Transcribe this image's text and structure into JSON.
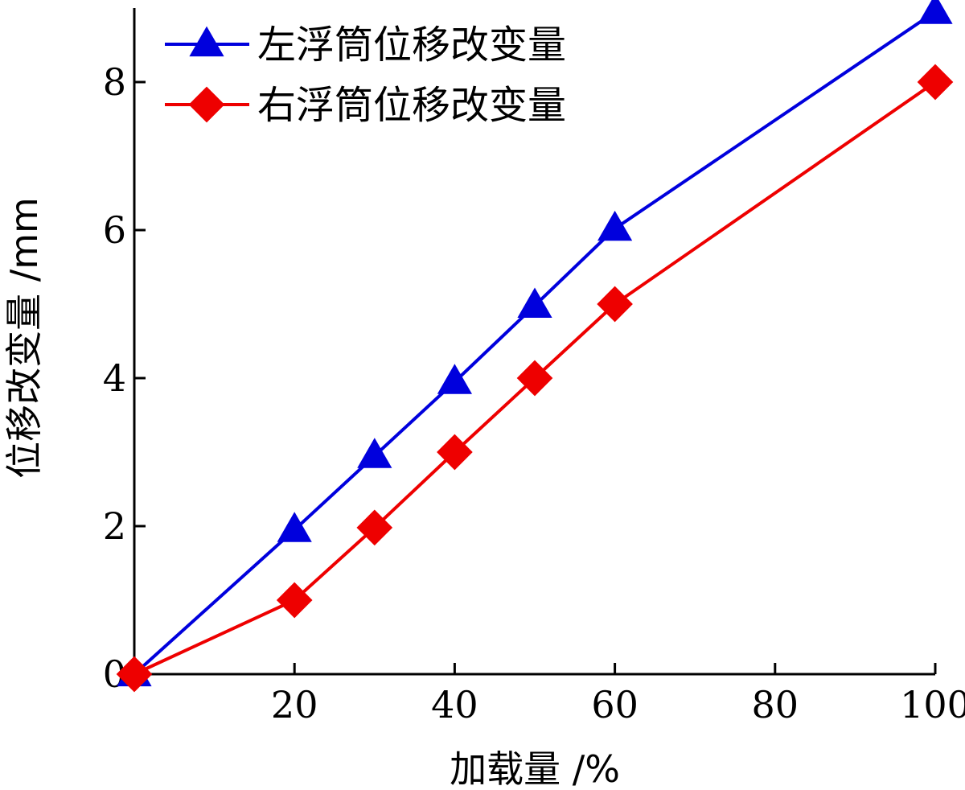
{
  "chart_data": {
    "type": "line",
    "title": "",
    "xlabel": "加载量 /%",
    "ylabel": "位移改变量 /mm",
    "xlim": [
      0,
      100
    ],
    "ylim": [
      0,
      9
    ],
    "x_ticks": [
      20,
      40,
      60,
      80,
      100
    ],
    "y_ticks": [
      0,
      2,
      4,
      6,
      8
    ],
    "grid": false,
    "legend_position": "top-left",
    "series": [
      {
        "name": "左浮筒位移改变量",
        "color": "#0000dd",
        "marker": "triangle",
        "x": [
          0,
          20,
          30,
          40,
          50,
          60,
          100
        ],
        "y": [
          0,
          1.95,
          2.95,
          3.95,
          4.98,
          6.02,
          8.95
        ]
      },
      {
        "name": "右浮筒位移改变量",
        "color": "#ee0000",
        "marker": "diamond",
        "x": [
          0,
          20,
          30,
          40,
          50,
          60,
          100
        ],
        "y": [
          0,
          1.0,
          1.98,
          3.0,
          4.0,
          5.0,
          8.0
        ]
      }
    ]
  }
}
